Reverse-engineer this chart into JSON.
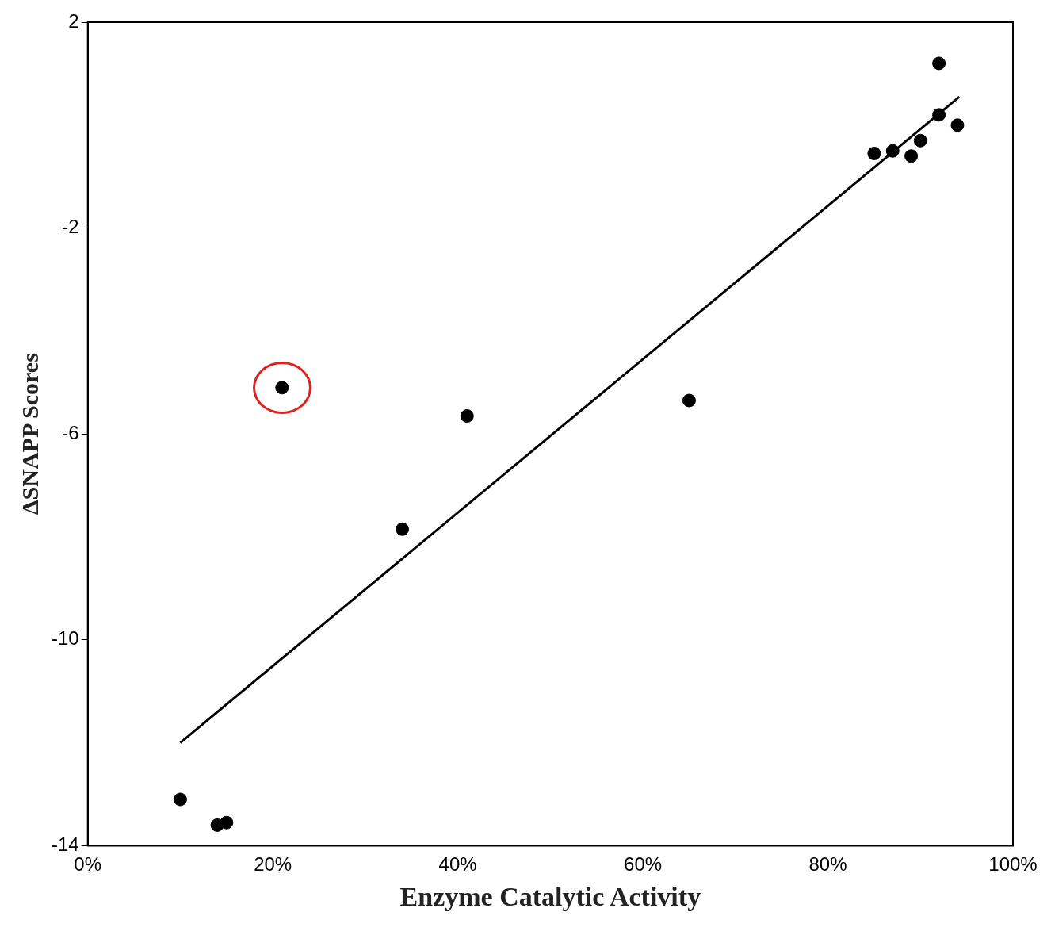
{
  "chart_data": {
    "type": "scatter",
    "xlabel": "Enzyme Catalytic Activity",
    "ylabel": "ΔSNAPP Scores",
    "xlim": [
      0,
      100
    ],
    "xticks": [
      {
        "value": 0,
        "label": "0%"
      },
      {
        "value": 20,
        "label": "20%"
      },
      {
        "value": 40,
        "label": "40%"
      },
      {
        "value": 60,
        "label": "60%"
      },
      {
        "value": 80,
        "label": "80%"
      },
      {
        "value": 100,
        "label": "100%"
      }
    ],
    "ylim": [
      -14,
      2
    ],
    "yticks": [
      -14,
      -10,
      -6,
      -2,
      2
    ],
    "grid": false,
    "legend": false,
    "marker": "circle",
    "series": [
      {
        "color": "#000000",
        "x": [
          10,
          14,
          15,
          21,
          34,
          41,
          65,
          85,
          87,
          89,
          90,
          92,
          92,
          94
        ],
        "values": [
          -13.1,
          -13.6,
          -13.55,
          -5.1,
          -7.85,
          -5.65,
          -5.35,
          -0.55,
          -0.5,
          -0.6,
          -0.3,
          1.2,
          0.2,
          0.0
        ]
      },
      {
        "type": "line",
        "color": "#000000",
        "x": [
          10,
          94.2
        ],
        "values": [
          -12.0,
          0.55
        ],
        "marker": "none",
        "line_style": "solid"
      }
    ]
  }
}
